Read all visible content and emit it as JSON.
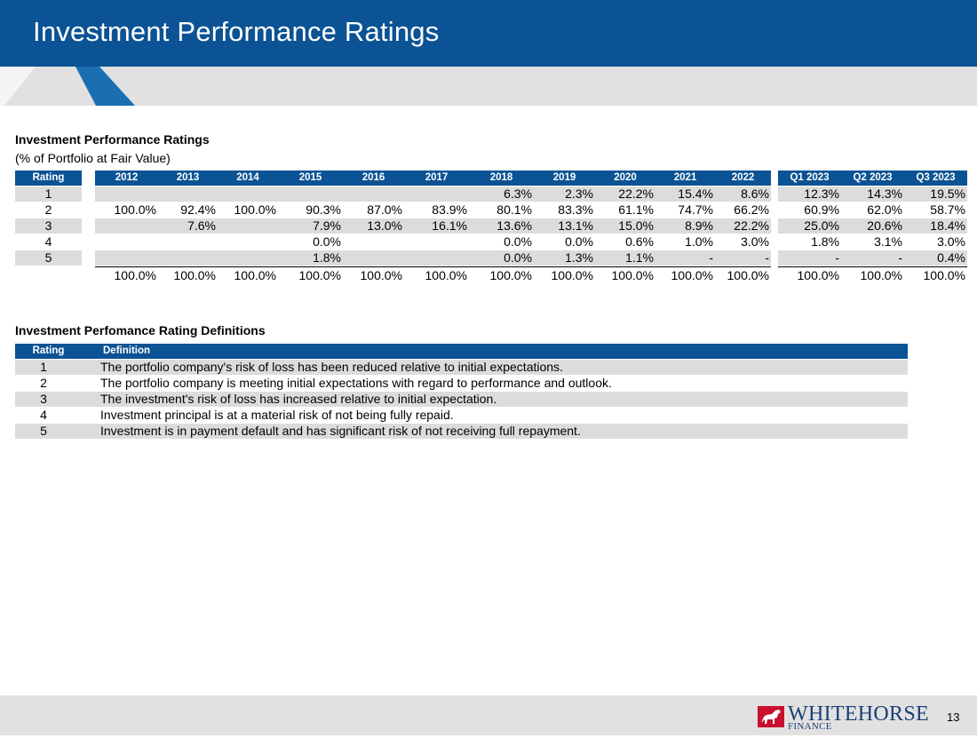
{
  "page": {
    "title": "Investment Performance Ratings",
    "page_number": "13"
  },
  "ratings": {
    "title": "Investment Performance Ratings",
    "subtitle": "(% of Portfolio at Fair Value)",
    "rating_header": "Rating",
    "year_columns": [
      "2012",
      "2013",
      "2014",
      "2015",
      "2016",
      "2017",
      "2018",
      "2019",
      "2020",
      "2021",
      "2022"
    ],
    "quarter_columns": [
      "Q1 2023",
      "Q2 2023",
      "Q3 2023"
    ],
    "rows": [
      {
        "rating": "1",
        "years": [
          "",
          "",
          "",
          "",
          "",
          "",
          "6.3%",
          "2.3%",
          "22.2%",
          "15.4%",
          "8.6%"
        ],
        "quarters": [
          "12.3%",
          "14.3%",
          "19.5%"
        ]
      },
      {
        "rating": "2",
        "years": [
          "100.0%",
          "92.4%",
          "100.0%",
          "90.3%",
          "87.0%",
          "83.9%",
          "80.1%",
          "83.3%",
          "61.1%",
          "74.7%",
          "66.2%"
        ],
        "quarters": [
          "60.9%",
          "62.0%",
          "58.7%"
        ]
      },
      {
        "rating": "3",
        "years": [
          "",
          "7.6%",
          "",
          "7.9%",
          "13.0%",
          "16.1%",
          "13.6%",
          "13.1%",
          "15.0%",
          "8.9%",
          "22.2%"
        ],
        "quarters": [
          "25.0%",
          "20.6%",
          "18.4%"
        ]
      },
      {
        "rating": "4",
        "years": [
          "",
          "",
          "",
          "0.0%",
          "",
          "",
          "0.0%",
          "0.0%",
          "0.6%",
          "1.0%",
          "3.0%"
        ],
        "quarters": [
          "1.8%",
          "3.1%",
          "3.0%"
        ]
      },
      {
        "rating": "5",
        "years": [
          "",
          "",
          "",
          "1.8%",
          "",
          "",
          "0.0%",
          "1.3%",
          "1.1%",
          "-",
          "-"
        ],
        "quarters": [
          "-",
          "-",
          "0.4%"
        ]
      }
    ],
    "totals": {
      "years": [
        "100.0%",
        "100.0%",
        "100.0%",
        "100.0%",
        "100.0%",
        "100.0%",
        "100.0%",
        "100.0%",
        "100.0%",
        "100.0%",
        "100.0%"
      ],
      "quarters": [
        "100.0%",
        "100.0%",
        "100.0%"
      ]
    }
  },
  "definitions": {
    "title": "Investment Perfomance Rating Definitions",
    "rating_header": "Rating",
    "definition_header": "Definition",
    "rows": [
      {
        "rating": "1",
        "text": "The portfolio company's risk of loss has been reduced relative to initial expectations."
      },
      {
        "rating": "2",
        "text": "The portfolio company is meeting initial expectations with regard to performance and outlook."
      },
      {
        "rating": "3",
        "text": "The investment's risk of loss has increased relative to initial expectation."
      },
      {
        "rating": "4",
        "text": "Investment principal is at a material risk of not being fully repaid."
      },
      {
        "rating": "5",
        "text": "Investment is in payment default and has significant risk of not receiving full repayment."
      }
    ]
  },
  "logo": {
    "word": "WHITEHORSE",
    "sub": "FINANCE"
  },
  "colors": {
    "brand_blue": "#0b5394",
    "row_gray": "#dcdcdc",
    "band_gray": "#e1e1e1",
    "logo_red": "#c8102e"
  }
}
